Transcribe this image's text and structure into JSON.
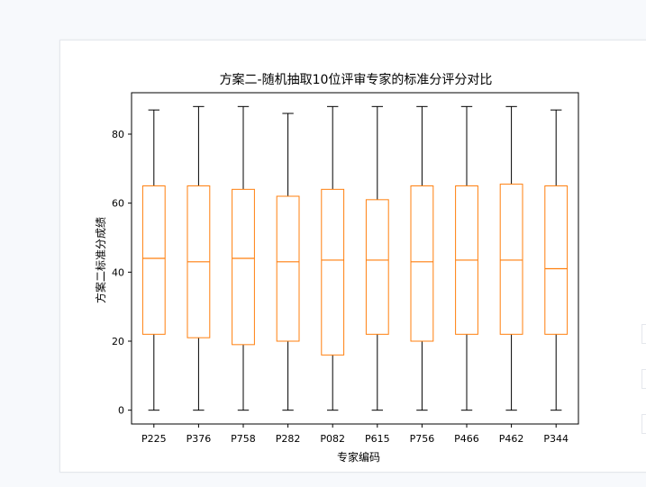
{
  "chart_data": {
    "type": "box",
    "title": "方案二-随机抽取10位评审专家的标准分评分对比",
    "xlabel": "专家编码",
    "ylabel": "方案二标准分成绩",
    "ylim": [
      -4,
      92
    ],
    "yticks": [
      0,
      20,
      40,
      60,
      80
    ],
    "box_color": "#ff7f0e",
    "whisker_color": "#000000",
    "categories": [
      "P225",
      "P376",
      "P758",
      "P282",
      "P082",
      "P615",
      "P756",
      "P466",
      "P462",
      "P344"
    ],
    "boxes": [
      {
        "name": "P225",
        "min": 0,
        "q1": 22,
        "median": 44,
        "q3": 65,
        "max": 87
      },
      {
        "name": "P376",
        "min": 0,
        "q1": 21,
        "median": 43,
        "q3": 65,
        "max": 88
      },
      {
        "name": "P758",
        "min": 0,
        "q1": 19,
        "median": 44,
        "q3": 64,
        "max": 88
      },
      {
        "name": "P282",
        "min": 0,
        "q1": 20,
        "median": 43,
        "q3": 62,
        "max": 86
      },
      {
        "name": "P082",
        "min": 0,
        "q1": 16,
        "median": 43.5,
        "q3": 64,
        "max": 88
      },
      {
        "name": "P615",
        "min": 0,
        "q1": 22,
        "median": 43.5,
        "q3": 61,
        "max": 88
      },
      {
        "name": "P756",
        "min": 0,
        "q1": 20,
        "median": 43,
        "q3": 65,
        "max": 88
      },
      {
        "name": "P466",
        "min": 0,
        "q1": 22,
        "median": 43.5,
        "q3": 65,
        "max": 88
      },
      {
        "name": "P462",
        "min": 0,
        "q1": 22,
        "median": 43.5,
        "q3": 65.5,
        "max": 88
      },
      {
        "name": "P344",
        "min": 0,
        "q1": 22,
        "median": 41,
        "q3": 65,
        "max": 87
      }
    ]
  }
}
